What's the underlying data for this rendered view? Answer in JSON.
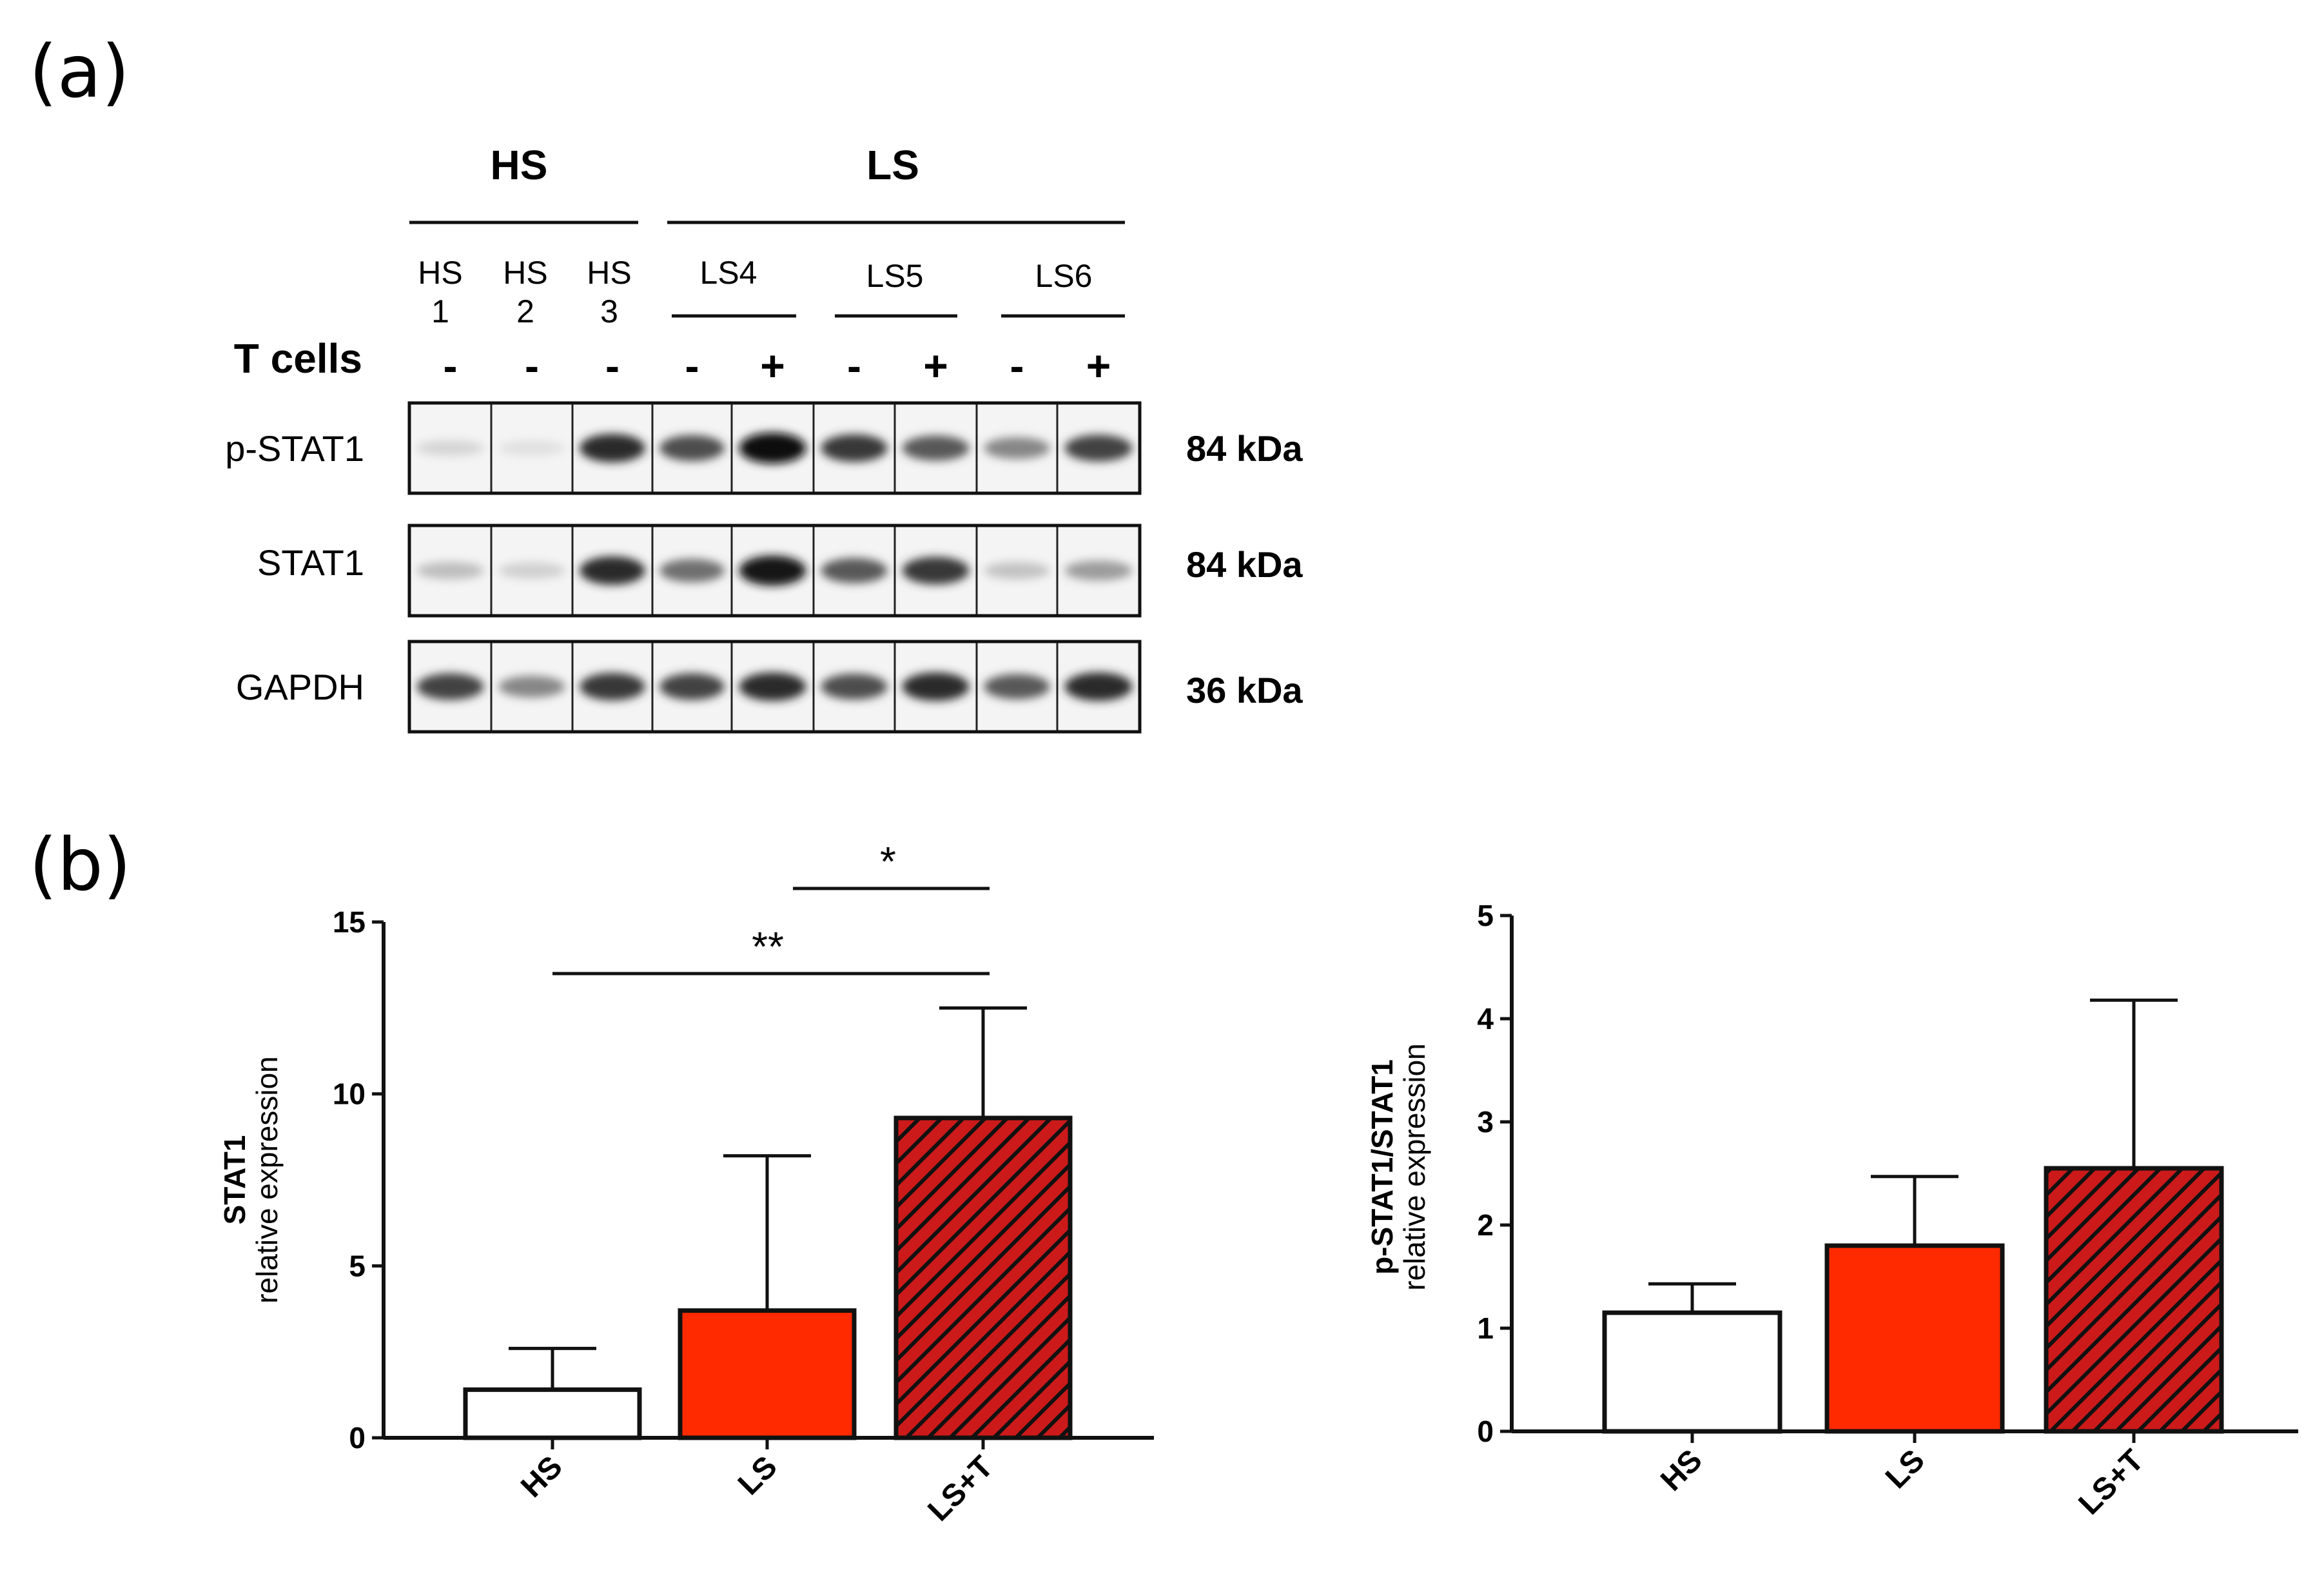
{
  "panels": {
    "a": "(a)",
    "b": "(b)"
  },
  "blot": {
    "groups": [
      {
        "label": "HS"
      },
      {
        "label": "LS"
      }
    ],
    "sublabels": [
      {
        "line1": "HS",
        "line2": "1"
      },
      {
        "line1": "HS",
        "line2": "2"
      },
      {
        "line1": "HS",
        "line2": "3"
      },
      {
        "line1": "LS4"
      },
      {
        "line1": "LS5"
      },
      {
        "line1": "LS6"
      }
    ],
    "treatment_label": "T cells",
    "signs": [
      "-",
      "-",
      "-",
      "-",
      "+",
      "-",
      "+",
      "-",
      "+"
    ],
    "rows": [
      {
        "label": "p-STAT1",
        "kda": "84 kDa",
        "intensity": [
          0.1,
          0.05,
          0.85,
          0.7,
          1.0,
          0.8,
          0.65,
          0.45,
          0.75
        ]
      },
      {
        "label": "STAT1",
        "kda": "84 kDa",
        "intensity": [
          0.2,
          0.12,
          0.85,
          0.55,
          0.95,
          0.65,
          0.8,
          0.18,
          0.35
        ]
      },
      {
        "label": "GAPDH",
        "kda": "36 kDa",
        "intensity": [
          0.75,
          0.45,
          0.8,
          0.75,
          0.85,
          0.7,
          0.85,
          0.65,
          0.85
        ]
      }
    ]
  },
  "colors": {
    "ls": "#ff2a00",
    "lst": "#cc1a1a",
    "hs": "#ffffff",
    "edge": "#111111"
  },
  "chart_data": [
    {
      "type": "bar",
      "categories": [
        "HS",
        "LS",
        "LS+T"
      ],
      "values": [
        1.4,
        3.7,
        9.3
      ],
      "errors": [
        1.2,
        4.5,
        3.2
      ],
      "ylabel_line1": "STAT1",
      "ylabel_line2": "relative expression",
      "ylim": [
        0,
        15
      ],
      "yticks": [
        "0",
        "5",
        "10",
        "15"
      ],
      "significance": [
        {
          "from": "LS",
          "to": "LS+T",
          "label": "*"
        },
        {
          "from": "HS",
          "to": "LS+T",
          "label": "**"
        }
      ]
    },
    {
      "type": "bar",
      "categories": [
        "HS",
        "LS",
        "LS+T"
      ],
      "values": [
        1.15,
        1.8,
        2.55
      ],
      "errors": [
        0.28,
        0.67,
        1.63
      ],
      "ylabel_line1": "p-STAT1/STAT1",
      "ylabel_line2": "relative expression",
      "ylim": [
        0,
        5
      ],
      "yticks": [
        "0",
        "1",
        "2",
        "3",
        "4",
        "5"
      ]
    }
  ]
}
